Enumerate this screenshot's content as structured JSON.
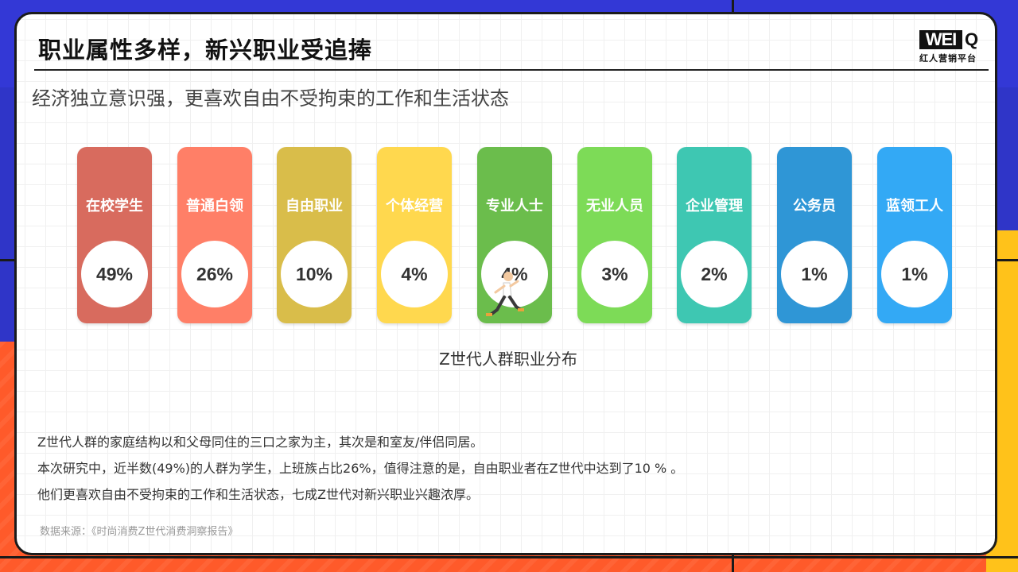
{
  "header": {
    "title": "职业属性多样，新兴职业受追捧"
  },
  "logo": {
    "main": "WEI",
    "q": "Q",
    "sub": "红人营销平台"
  },
  "subtitle": "经济独立意识强，更喜欢自由不受拘束的工作和生活状态",
  "chart_data": {
    "type": "bar",
    "title": "Z世代人群职业分布",
    "categories": [
      "在校学生",
      "普通白领",
      "自由职业",
      "个体经营",
      "专业人士",
      "无业人员",
      "企业管理",
      "公务员",
      "蓝领工人"
    ],
    "values": [
      49,
      26,
      10,
      4,
      4,
      3,
      2,
      1,
      1
    ],
    "value_labels": [
      "49%",
      "26%",
      "10%",
      "4%",
      "4%",
      "3%",
      "2%",
      "1%",
      "1%"
    ],
    "unit": "%",
    "colors": [
      "#d86b5e",
      "#ff7f67",
      "#d9bd4a",
      "#ffd84e",
      "#6bbd4c",
      "#7ddb57",
      "#3ec7b2",
      "#2f96d6",
      "#33a9f5"
    ]
  },
  "body": {
    "lines": [
      "Z世代人群的家庭结构以和父母同住的三口之家为主，其次是和室友/伴侣同居。",
      "本次研究中，近半数(49%)的人群为学生，上班族占比26%，值得注意的是，自由职业者在Z世代中达到了10 % 。",
      "他们更喜欢自由不受拘束的工作和生活状态，七成Z世代对新兴职业兴趣浓厚。"
    ]
  },
  "source": "数据来源：《时尚消费Z世代消费洞察报告》",
  "icons": {
    "runner": "running-person-icon"
  }
}
